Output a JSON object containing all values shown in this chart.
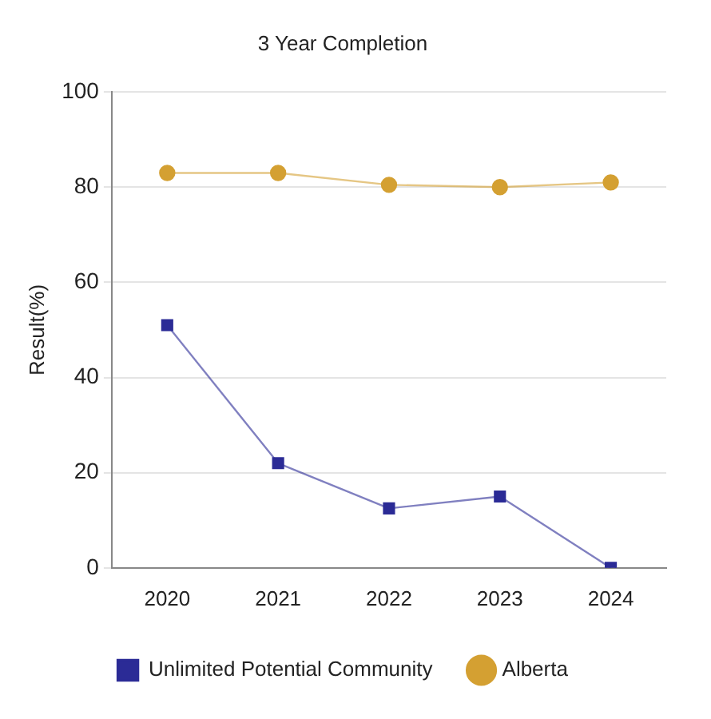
{
  "chart_data": {
    "type": "line",
    "title": "3 Year Completion",
    "ylabel": "Result(%)",
    "categories": [
      "2020",
      "2021",
      "2022",
      "2023",
      "2024"
    ],
    "series": [
      {
        "name": "Unlimited Potential Community",
        "color": "#2b2b96",
        "values": [
          51,
          22,
          12.5,
          15,
          0
        ],
        "marker": "square"
      },
      {
        "name": "Alberta",
        "color": "#d4a032",
        "values": [
          83,
          83,
          80.5,
          80,
          81
        ],
        "marker": "circle"
      }
    ],
    "ylim": [
      0,
      100
    ],
    "yticks": [
      0,
      20,
      40,
      60,
      80,
      100
    ],
    "grid": "y",
    "legend": "bottom"
  }
}
